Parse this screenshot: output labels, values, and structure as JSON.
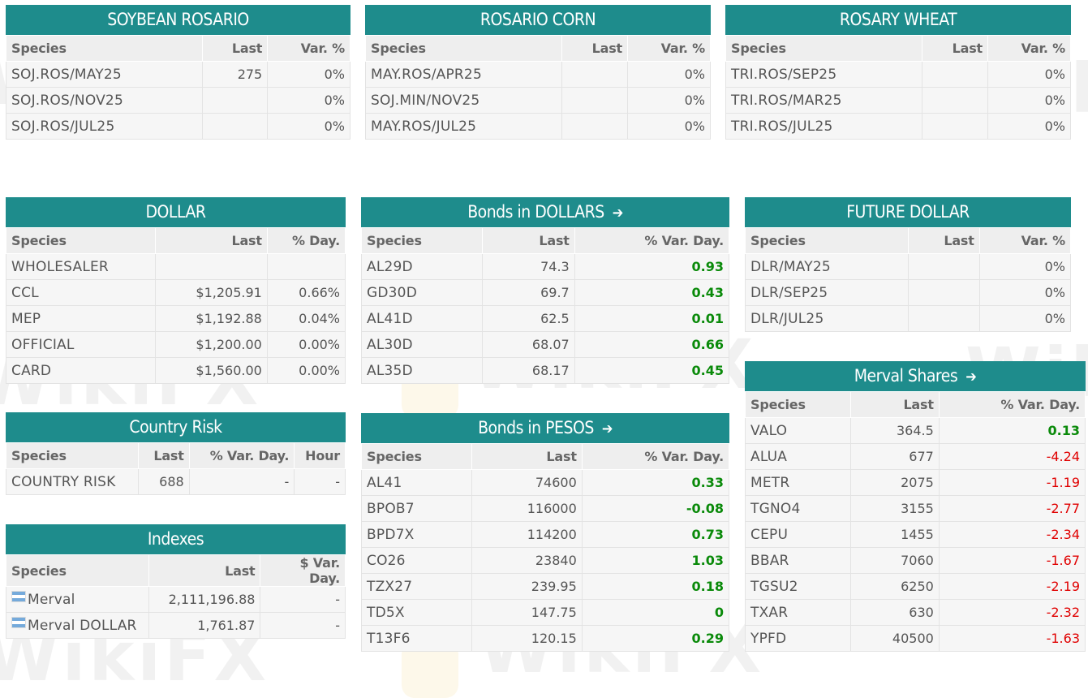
{
  "watermark": "WikiFX",
  "colors": {
    "header": "#1e8c8c",
    "positive": "#0a8a0a",
    "negative": "#e00000"
  },
  "soybean": {
    "title": "SOYBEAN ROSARIO",
    "cols": [
      "Species",
      "Last",
      "Var. %"
    ],
    "rows": [
      {
        "species": "SOJ.ROS/MAY25",
        "last": "275",
        "var": "0%"
      },
      {
        "species": "SOJ.ROS/NOV25",
        "last": "",
        "var": "0%"
      },
      {
        "species": "SOJ.ROS/JUL25",
        "last": "",
        "var": "0%"
      }
    ]
  },
  "corn": {
    "title": "ROSARIO CORN",
    "cols": [
      "Species",
      "Last",
      "Var. %"
    ],
    "rows": [
      {
        "species": "MAY.ROS/APR25",
        "last": "",
        "var": "0%"
      },
      {
        "species": "SOJ.MIN/NOV25",
        "last": "",
        "var": "0%"
      },
      {
        "species": "MAY.ROS/JUL25",
        "last": "",
        "var": "0%"
      }
    ]
  },
  "wheat": {
    "title": "ROSARY WHEAT",
    "cols": [
      "Species",
      "Last",
      "Var. %"
    ],
    "rows": [
      {
        "species": "TRI.ROS/SEP25",
        "last": "",
        "var": "0%"
      },
      {
        "species": "TRI.ROS/MAR25",
        "last": "",
        "var": "0%"
      },
      {
        "species": "TRI.ROS/JUL25",
        "last": "",
        "var": "0%"
      }
    ]
  },
  "dollar": {
    "title": "DOLLAR",
    "cols": [
      "Species",
      "Last",
      "% Day."
    ],
    "rows": [
      {
        "species": "WHOLESALER",
        "last": "",
        "var": ""
      },
      {
        "species": "CCL",
        "last": "$1,205.91",
        "var": "0.66%"
      },
      {
        "species": "MEP",
        "last": "$1,192.88",
        "var": "0.04%"
      },
      {
        "species": "OFFICIAL",
        "last": "$1,200.00",
        "var": "0.00%"
      },
      {
        "species": "CARD",
        "last": "$1,560.00",
        "var": "0.00%"
      }
    ]
  },
  "bonds_usd": {
    "title": "Bonds in DOLLARS",
    "arrow": "➔",
    "cols": [
      "Species",
      "Last",
      "% Var. Day."
    ],
    "rows": [
      {
        "species": "AL29D",
        "last": "74.3",
        "var": "0.93"
      },
      {
        "species": "GD30D",
        "last": "69.7",
        "var": "0.43"
      },
      {
        "species": "AL41D",
        "last": "62.5",
        "var": "0.01"
      },
      {
        "species": "AL30D",
        "last": "68.07",
        "var": "0.66"
      },
      {
        "species": "AL35D",
        "last": "68.17",
        "var": "0.45"
      }
    ]
  },
  "future_dollar": {
    "title": "FUTURE DOLLAR",
    "cols": [
      "Species",
      "Last",
      "Var. %"
    ],
    "rows": [
      {
        "species": "DLR/MAY25",
        "last": "",
        "var": "0%"
      },
      {
        "species": "DLR/SEP25",
        "last": "",
        "var": "0%"
      },
      {
        "species": "DLR/JUL25",
        "last": "",
        "var": "0%"
      }
    ]
  },
  "country_risk": {
    "title": "Country Risk",
    "cols": [
      "Species",
      "Last",
      "% Var. Day.",
      "Hour"
    ],
    "rows": [
      {
        "species": "COUNTRY RISK",
        "last": "688",
        "var": "-",
        "hour": "-"
      }
    ]
  },
  "bonds_ars": {
    "title": "Bonds in PESOS",
    "arrow": "➔",
    "cols": [
      "Species",
      "Last",
      "% Var. Day."
    ],
    "rows": [
      {
        "species": "AL41",
        "last": "74600",
        "var": "0.33"
      },
      {
        "species": "BPOB7",
        "last": "116000",
        "var": "-0.08"
      },
      {
        "species": "BPD7X",
        "last": "114200",
        "var": "0.73"
      },
      {
        "species": "CO26",
        "last": "23840",
        "var": "1.03"
      },
      {
        "species": "TZX27",
        "last": "239.95",
        "var": "0.18"
      },
      {
        "species": "TD5X",
        "last": "147.75",
        "var": "0"
      },
      {
        "species": "T13F6",
        "last": "120.15",
        "var": "0.29"
      }
    ]
  },
  "merval": {
    "title": "Merval Shares",
    "arrow": "➔",
    "cols": [
      "Species",
      "Last",
      "% Var. Day."
    ],
    "rows": [
      {
        "species": "VALO",
        "last": "364.5",
        "var": "0.13",
        "sign": "pos"
      },
      {
        "species": "ALUA",
        "last": "677",
        "var": "-4.24",
        "sign": "neg"
      },
      {
        "species": "METR",
        "last": "2075",
        "var": "-1.19",
        "sign": "neg"
      },
      {
        "species": "TGNO4",
        "last": "3155",
        "var": "-2.77",
        "sign": "neg"
      },
      {
        "species": "CEPU",
        "last": "1455",
        "var": "-2.34",
        "sign": "neg"
      },
      {
        "species": "BBAR",
        "last": "7060",
        "var": "-1.67",
        "sign": "neg"
      },
      {
        "species": "TGSU2",
        "last": "6250",
        "var": "-2.19",
        "sign": "neg"
      },
      {
        "species": "TXAR",
        "last": "630",
        "var": "-2.32",
        "sign": "neg"
      },
      {
        "species": "YPFD",
        "last": "40500",
        "var": "-1.63",
        "sign": "neg"
      }
    ]
  },
  "indexes": {
    "title": "Indexes",
    "cols": [
      "Species",
      "Last",
      "$ Var. Day."
    ],
    "rows": [
      {
        "species": "Merval",
        "last": "2,111,196.88",
        "var": "-"
      },
      {
        "species": "Merval DOLLAR",
        "last": "1,761.87",
        "var": "-"
      }
    ]
  }
}
